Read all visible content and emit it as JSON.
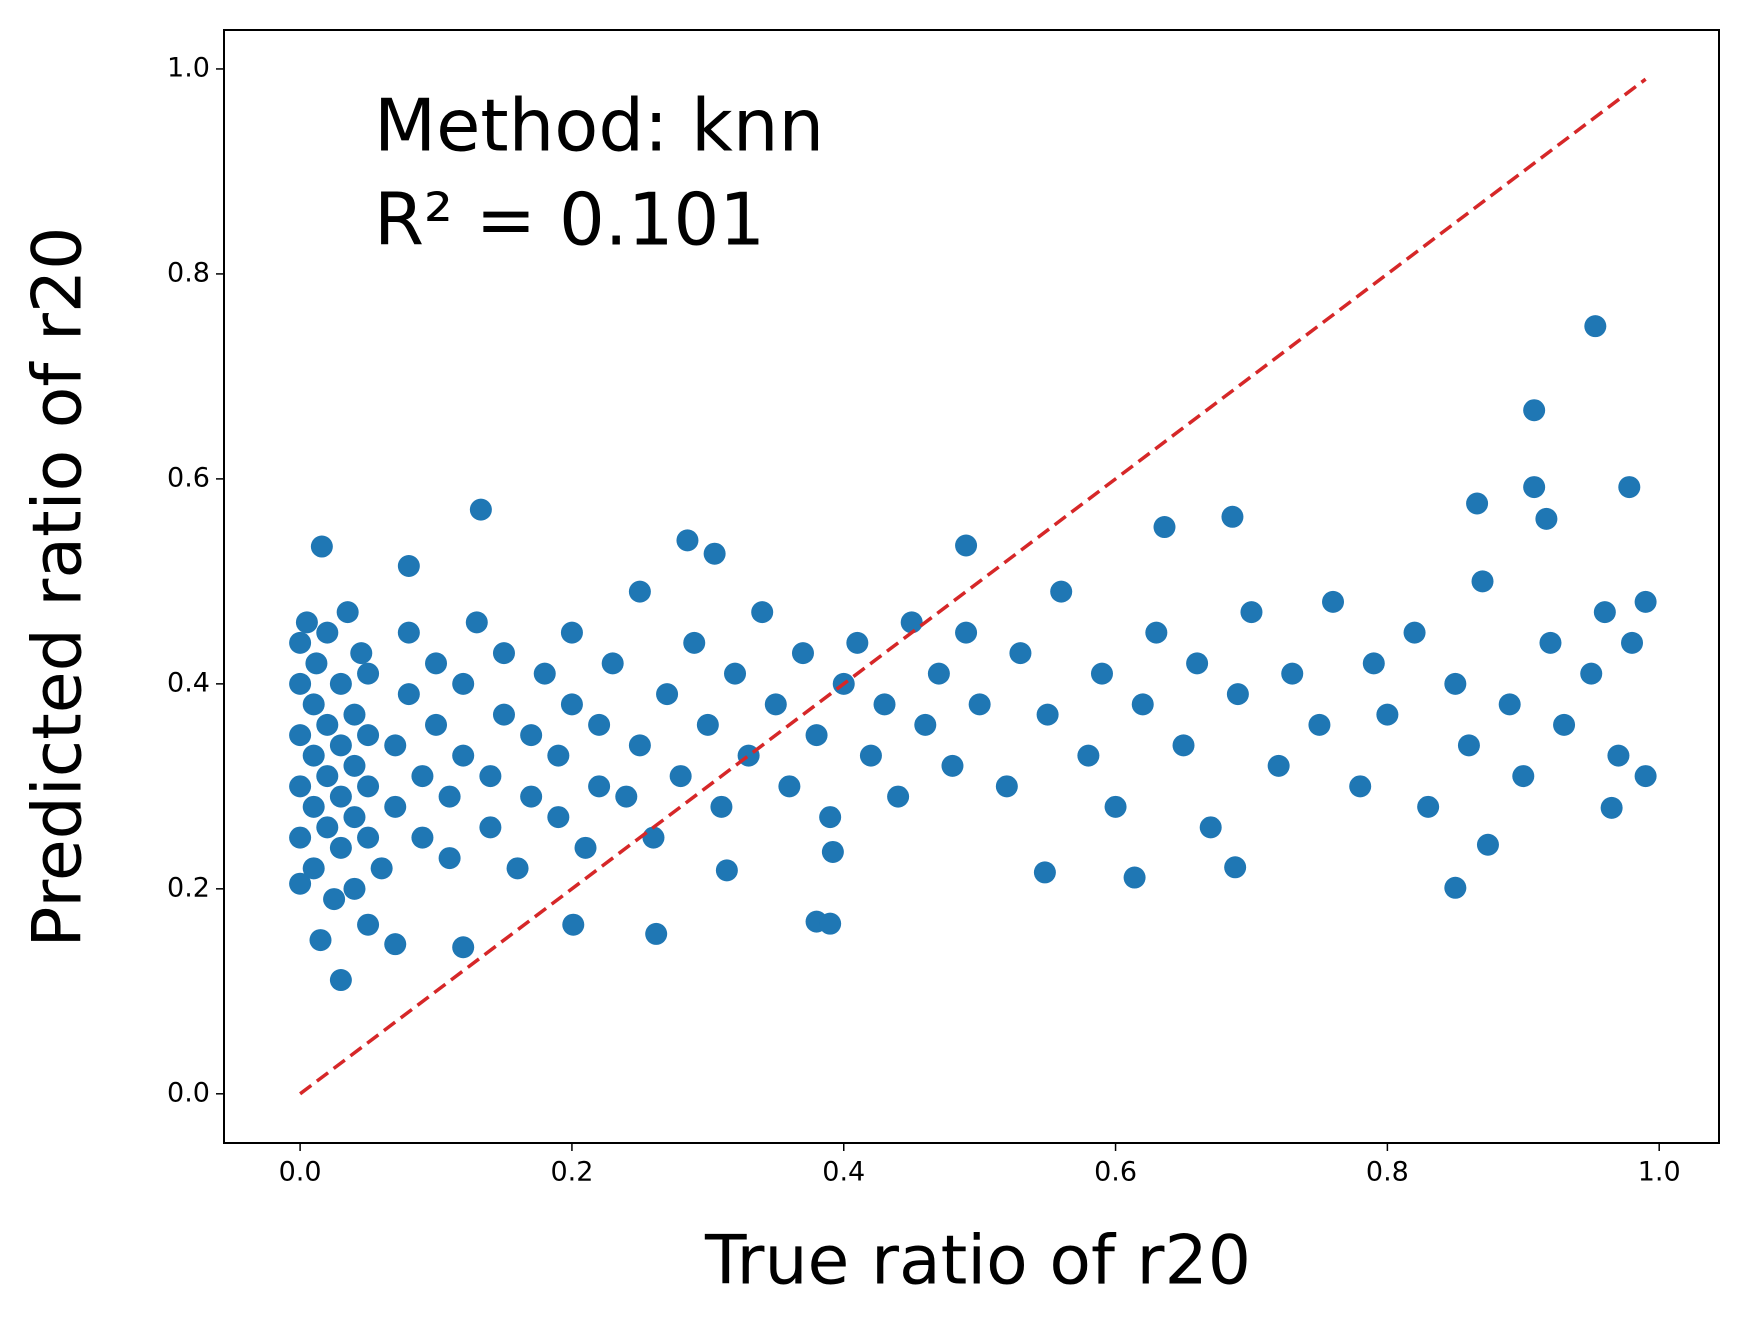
{
  "chart_data": {
    "type": "scatter",
    "x_label": "True ratio of r20",
    "y_label": "Predicted ratio of r20",
    "annotations": [
      "Method: knn",
      "R² = 0.101"
    ],
    "xlim": [
      -0.056,
      1.044
    ],
    "ylim": [
      -0.048,
      1.038
    ],
    "xticks": [
      {
        "value": 0,
        "label": "0.0"
      },
      0.2,
      0.4,
      0.6,
      0.8,
      {
        "value": 1,
        "label": "1.0"
      }
    ],
    "yticks": [
      {
        "value": 0,
        "label": "0.0"
      },
      0.2,
      0.4,
      0.6,
      0.8,
      {
        "value": 1,
        "label": "1.0"
      }
    ],
    "series": [
      {
        "color": "#1f77b4",
        "x": [
          0.0,
          0.0,
          0.0,
          0.0,
          0.0,
          0.0,
          0.005,
          0.01,
          0.01,
          0.01,
          0.01,
          0.012,
          0.02,
          0.02,
          0.02,
          0.02,
          0.025,
          0.03,
          0.03,
          0.03,
          0.03,
          0.035,
          0.04,
          0.04,
          0.04,
          0.04,
          0.045,
          0.05,
          0.05,
          0.05,
          0.05,
          0.05,
          0.06,
          0.07,
          0.07,
          0.08,
          0.08,
          0.09,
          0.09,
          0.1,
          0.1,
          0.11,
          0.11,
          0.12,
          0.12,
          0.13,
          0.14,
          0.14,
          0.15,
          0.15,
          0.16,
          0.17,
          0.17,
          0.18,
          0.19,
          0.19,
          0.2,
          0.2,
          0.21,
          0.22,
          0.22,
          0.23,
          0.24,
          0.25,
          0.25,
          0.26,
          0.27,
          0.28,
          0.29,
          0.3,
          0.31,
          0.32,
          0.33,
          0.34,
          0.35,
          0.36,
          0.37,
          0.38,
          0.39,
          0.4,
          0.41,
          0.42,
          0.43,
          0.44,
          0.45,
          0.46,
          0.47,
          0.48,
          0.49,
          0.5,
          0.52,
          0.53,
          0.55,
          0.56,
          0.58,
          0.59,
          0.6,
          0.62,
          0.63,
          0.65,
          0.66,
          0.67,
          0.69,
          0.7,
          0.72,
          0.73,
          0.75,
          0.76,
          0.78,
          0.79,
          0.8,
          0.82,
          0.83,
          0.85,
          0.86,
          0.87,
          0.89,
          0.9,
          0.92,
          0.93,
          0.95,
          0.96,
          0.97,
          0.98,
          0.99,
          0.99,
          0.953,
          0.908,
          0.133,
          0.908,
          0.978,
          0.03,
          0.85,
          0.262,
          0.38,
          0.39,
          0.12,
          0.07,
          0.015,
          0.016,
          0.08,
          0.285,
          0.305,
          0.49,
          0.686,
          0.636,
          0.866,
          0.917,
          0.548,
          0.614,
          0.392,
          0.201,
          0.314,
          0.688,
          0.874,
          0.965
        ],
        "values": [
          0.205,
          0.25,
          0.3,
          0.35,
          0.4,
          0.44,
          0.46,
          0.22,
          0.28,
          0.33,
          0.38,
          0.42,
          0.26,
          0.31,
          0.36,
          0.45,
          0.19,
          0.24,
          0.29,
          0.34,
          0.4,
          0.47,
          0.2,
          0.27,
          0.32,
          0.37,
          0.43,
          0.165,
          0.25,
          0.3,
          0.35,
          0.41,
          0.22,
          0.28,
          0.34,
          0.39,
          0.45,
          0.25,
          0.31,
          0.36,
          0.42,
          0.23,
          0.29,
          0.33,
          0.4,
          0.46,
          0.26,
          0.31,
          0.37,
          0.43,
          0.22,
          0.29,
          0.35,
          0.41,
          0.27,
          0.33,
          0.38,
          0.45,
          0.24,
          0.3,
          0.36,
          0.42,
          0.29,
          0.34,
          0.49,
          0.25,
          0.39,
          0.31,
          0.44,
          0.36,
          0.28,
          0.41,
          0.33,
          0.47,
          0.38,
          0.3,
          0.43,
          0.35,
          0.27,
          0.4,
          0.44,
          0.33,
          0.38,
          0.29,
          0.46,
          0.36,
          0.41,
          0.32,
          0.45,
          0.38,
          0.3,
          0.43,
          0.37,
          0.49,
          0.33,
          0.41,
          0.28,
          0.38,
          0.45,
          0.34,
          0.42,
          0.26,
          0.39,
          0.47,
          0.32,
          0.41,
          0.36,
          0.48,
          0.3,
          0.42,
          0.37,
          0.45,
          0.28,
          0.4,
          0.34,
          0.5,
          0.38,
          0.31,
          0.44,
          0.36,
          0.41,
          0.47,
          0.33,
          0.44,
          0.31,
          0.48,
          0.749,
          0.667,
          0.57,
          0.592,
          0.592,
          0.111,
          0.201,
          0.156,
          0.168,
          0.166,
          0.143,
          0.146,
          0.15,
          0.534,
          0.515,
          0.54,
          0.527,
          0.535,
          0.563,
          0.553,
          0.576,
          0.561,
          0.216,
          0.211,
          0.236,
          0.165,
          0.218,
          0.221,
          0.243,
          0.279
        ]
      }
    ],
    "reference_line": {
      "color": "#d62728",
      "x": [
        0,
        0.99
      ],
      "values": [
        0,
        0.99
      ]
    }
  }
}
